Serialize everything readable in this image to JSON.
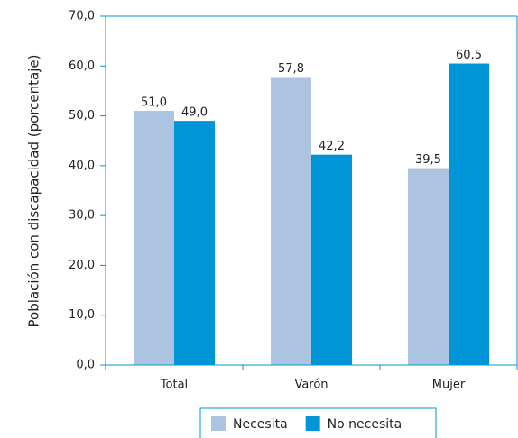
{
  "chart_data": {
    "type": "bar",
    "y_label": "Población con discapacidad (porcentaje)",
    "categories": [
      "Total",
      "Varón",
      "Mujer"
    ],
    "series": [
      {
        "name": "Necesita",
        "color": "#adc4e0",
        "values": [
          51.0,
          57.8,
          39.5
        ],
        "value_labels": [
          "51,0",
          "57,8",
          "39,5"
        ]
      },
      {
        "name": "No necesita",
        "color": "#0095d6",
        "values": [
          49.0,
          42.2,
          60.5
        ],
        "value_labels": [
          "49,0",
          "42,2",
          "60,5"
        ]
      }
    ],
    "ylim": [
      0,
      70
    ],
    "yticks": [
      {
        "value": 0,
        "label": "0,0"
      },
      {
        "value": 10,
        "label": "10,0"
      },
      {
        "value": 20,
        "label": "20,0"
      },
      {
        "value": 30,
        "label": "30,0"
      },
      {
        "value": 40,
        "label": "40,0"
      },
      {
        "value": 50,
        "label": "50,0"
      },
      {
        "value": 60,
        "label": "60,0"
      },
      {
        "value": 70,
        "label": "70,0"
      }
    ],
    "legend": "bottom"
  }
}
